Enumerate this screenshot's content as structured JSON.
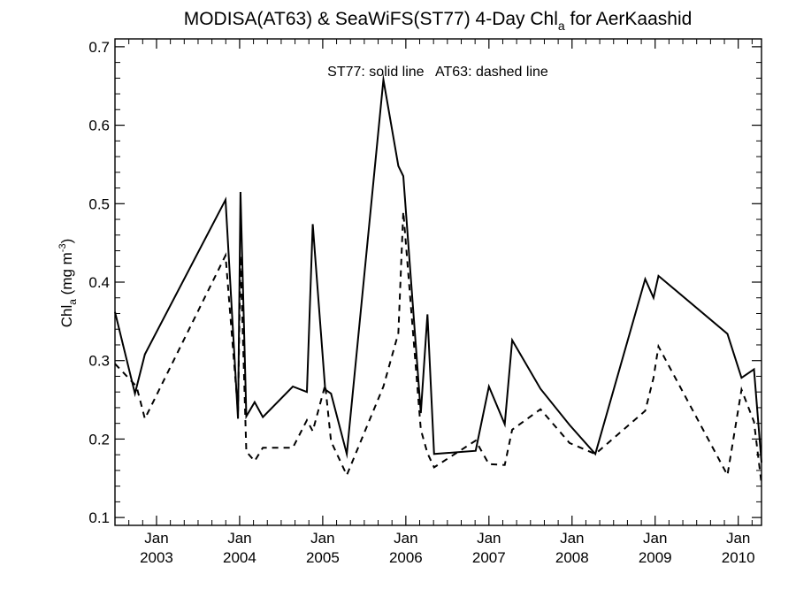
{
  "chart_data": {
    "type": "line",
    "title": {
      "main": "MODISA(AT63) & SeaWiFS(ST77) 4-Day Chl",
      "sub": "a",
      "tail": " for AerKaashid"
    },
    "annotation": "ST77: solid line   AT63: dashed line",
    "ylabel": {
      "base": "Chl",
      "sub": "a",
      "mid": " (mg m",
      "sup": "-3",
      "end": ")"
    },
    "xlabel": "",
    "xlim": [
      2002.5,
      2010.28
    ],
    "ylim": [
      0.09,
      0.71
    ],
    "y_ticks": [
      {
        "value": 0.1,
        "label": "0.1"
      },
      {
        "value": 0.2,
        "label": "0.2"
      },
      {
        "value": 0.3,
        "label": "0.3"
      },
      {
        "value": 0.4,
        "label": "0.4"
      },
      {
        "value": 0.5,
        "label": "0.5"
      },
      {
        "value": 0.6,
        "label": "0.6"
      },
      {
        "value": 0.7,
        "label": "0.7"
      }
    ],
    "x_ticks": [
      {
        "value": 2003.0,
        "line1": "Jan",
        "line2": "2003"
      },
      {
        "value": 2004.0,
        "line1": "Jan",
        "line2": "2004"
      },
      {
        "value": 2005.0,
        "line1": "Jan",
        "line2": "2005"
      },
      {
        "value": 2006.0,
        "line1": "Jan",
        "line2": "2006"
      },
      {
        "value": 2007.0,
        "line1": "Jan",
        "line2": "2007"
      },
      {
        "value": 2008.0,
        "line1": "Jan",
        "line2": "2008"
      },
      {
        "value": 2009.0,
        "line1": "Jan",
        "line2": "2009"
      },
      {
        "value": 2010.0,
        "line1": "Jan",
        "line2": "2010"
      }
    ],
    "grid": false,
    "series": [
      {
        "id": "ST77",
        "style": "solid",
        "color": "#000000",
        "x": [
          2002.5,
          2002.74,
          2002.86,
          2003.83,
          2003.98,
          2004.01,
          2004.08,
          2004.18,
          2004.28,
          2004.64,
          2004.81,
          2004.88,
          2005.03,
          2005.1,
          2005.29,
          2005.73,
          2005.91,
          2005.97,
          2006.18,
          2006.26,
          2006.34,
          2006.84,
          2007.0,
          2007.19,
          2007.28,
          2007.62,
          2007.97,
          2008.28,
          2008.88,
          2008.98,
          2009.04,
          2009.87,
          2010.04,
          2010.19,
          2010.28
        ],
        "y": [
          0.362,
          0.258,
          0.308,
          0.505,
          0.226,
          0.515,
          0.229,
          0.247,
          0.228,
          0.267,
          0.26,
          0.474,
          0.263,
          0.258,
          0.181,
          0.658,
          0.548,
          0.535,
          0.233,
          0.359,
          0.181,
          0.185,
          0.267,
          0.219,
          0.326,
          0.264,
          0.218,
          0.181,
          0.404,
          0.38,
          0.408,
          0.334,
          0.278,
          0.289,
          0.17
        ]
      },
      {
        "id": "AT63",
        "style": "dashed",
        "color": "#000000",
        "x": [
          2002.5,
          2002.76,
          2002.86,
          2003.83,
          2003.98,
          2004.01,
          2004.08,
          2004.18,
          2004.28,
          2004.64,
          2004.81,
          2004.88,
          2005.03,
          2005.1,
          2005.29,
          2005.73,
          2005.91,
          2005.97,
          2006.18,
          2006.26,
          2006.34,
          2006.84,
          2007.0,
          2007.19,
          2007.28,
          2007.62,
          2007.97,
          2008.28,
          2008.88,
          2008.98,
          2009.04,
          2009.87,
          2010.04,
          2010.19,
          2010.28
        ],
        "y": [
          0.296,
          0.267,
          0.226,
          0.434,
          0.235,
          0.434,
          0.184,
          0.172,
          0.189,
          0.189,
          0.224,
          0.21,
          0.269,
          0.197,
          0.154,
          0.267,
          0.335,
          0.49,
          0.212,
          0.182,
          0.164,
          0.198,
          0.168,
          0.167,
          0.212,
          0.238,
          0.195,
          0.181,
          0.236,
          0.278,
          0.318,
          0.154,
          0.263,
          0.222,
          0.143
        ]
      }
    ]
  }
}
